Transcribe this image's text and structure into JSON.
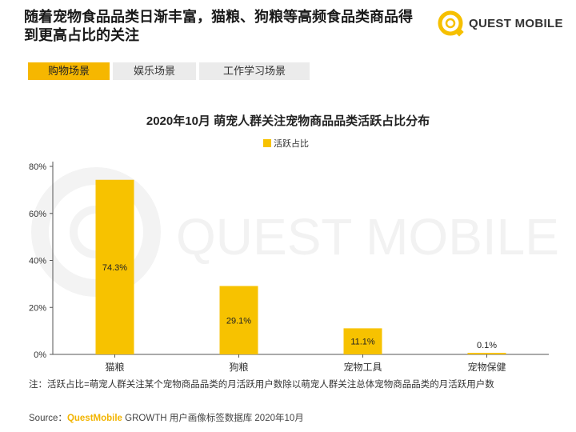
{
  "headline": "随着宠物食品品类日渐丰富，猫粮、狗粮等高频食品类商品得到更高占比的关注",
  "logo": {
    "text": "QUEST MOBILE",
    "icon": "questmobile-logo-icon",
    "color": "#f6c000"
  },
  "tabs": [
    {
      "label": "购物场景",
      "active": true
    },
    {
      "label": "娱乐场景",
      "active": false
    },
    {
      "label": "工作学习场景",
      "active": false
    }
  ],
  "watermark": "QUEST MOBILE",
  "note": "注：活跃占比=萌宠人群关注某个宠物商品品类的月活跃用户数除以萌宠人群关注总体宠物商品品类的月活跃用户数",
  "source": {
    "prefix": "Source：",
    "brand": "QuestMobile",
    "rest": " GROWTH 用户画像标签数据库 2020年10月"
  },
  "colors": {
    "accent": "#f6b700",
    "bar": "#f7c200",
    "tab_inactive": "#ebebeb"
  },
  "chart_data": {
    "type": "bar",
    "title": "2020年10月 萌宠人群关注宠物商品品类活跃占比分布",
    "legend": [
      "活跃占比"
    ],
    "legend_position": "top-center",
    "categories": [
      "猫粮",
      "狗粮",
      "宠物工具",
      "宠物保健"
    ],
    "series": [
      {
        "name": "活跃占比",
        "values": [
          74.3,
          29.1,
          11.1,
          0.1
        ],
        "labels": [
          "74.3%",
          "29.1%",
          "11.1%",
          "0.1%"
        ]
      }
    ],
    "yticks": [
      "0%",
      "20%",
      "40%",
      "60%",
      "80%"
    ],
    "ylim": [
      0,
      80
    ],
    "grid": false
  }
}
